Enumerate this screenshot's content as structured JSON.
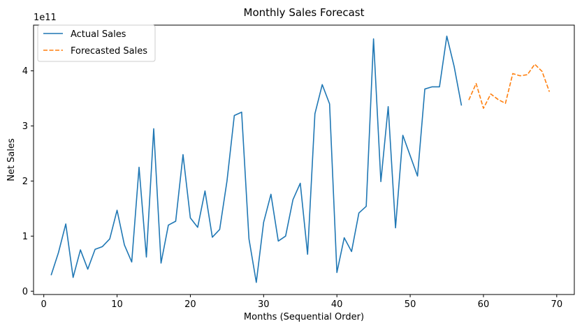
{
  "chart_data": {
    "type": "line",
    "title": "Monthly Sales Forecast",
    "xlabel": "Months (Sequential Order)",
    "ylabel": "Net Sales",
    "y_offset_label": "1e11",
    "y_multiplier": 100000000000,
    "xlim": [
      -1.4,
      72.4
    ],
    "ylim": [
      -0.06,
      4.83
    ],
    "x_ticks": [
      0,
      10,
      20,
      30,
      40,
      50,
      60,
      70
    ],
    "y_ticks": [
      0,
      1,
      2,
      3,
      4
    ],
    "grid": false,
    "legend_position": "upper left",
    "series": [
      {
        "name": "Actual Sales",
        "color": "#1f77b4",
        "dash": "solid",
        "x": [
          1,
          2,
          3,
          4,
          5,
          6,
          7,
          8,
          9,
          10,
          11,
          12,
          13,
          14,
          15,
          16,
          17,
          18,
          19,
          20,
          21,
          22,
          23,
          24,
          25,
          26,
          27,
          28,
          29,
          30,
          31,
          32,
          33,
          34,
          35,
          36,
          37,
          38,
          39,
          40,
          41,
          42,
          43,
          44,
          45,
          46,
          47,
          48,
          49,
          50,
          51,
          52,
          53,
          54,
          55,
          56,
          57
        ],
        "y": [
          0.29,
          0.7,
          1.22,
          0.25,
          0.75,
          0.4,
          0.76,
          0.81,
          0.95,
          1.47,
          0.84,
          0.53,
          2.25,
          0.62,
          2.95,
          0.51,
          1.2,
          1.27,
          2.48,
          1.33,
          1.16,
          1.82,
          0.98,
          1.12,
          2.0,
          3.19,
          3.25,
          0.95,
          0.16,
          1.25,
          1.76,
          0.91,
          1.0,
          1.66,
          1.96,
          0.67,
          3.22,
          3.75,
          3.4,
          0.34,
          0.97,
          0.72,
          1.42,
          1.54,
          4.58,
          1.99,
          3.35,
          1.15,
          2.83,
          2.46,
          2.09,
          3.67,
          3.71,
          3.71,
          4.63,
          4.08,
          3.37
        ]
      },
      {
        "name": "Forecasted Sales",
        "color": "#ff7f0e",
        "dash": "dashed",
        "x": [
          58,
          59,
          60,
          61,
          62,
          63,
          64,
          65,
          66,
          67,
          68,
          69
        ],
        "y": [
          3.47,
          3.77,
          3.32,
          3.58,
          3.48,
          3.41,
          3.95,
          3.91,
          3.93,
          4.12,
          3.99,
          3.62
        ]
      }
    ]
  }
}
